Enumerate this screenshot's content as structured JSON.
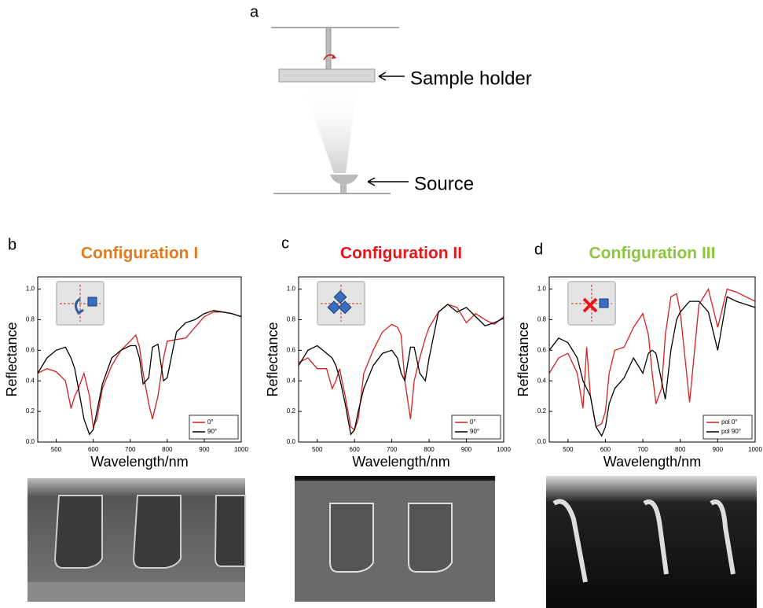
{
  "figure_a": {
    "panel": "a",
    "sample_holder": "Sample holder",
    "source": "Source"
  },
  "chart_data": [
    {
      "type": "line",
      "panel": "b",
      "title": "Configuration I",
      "title_color": "#e07b22",
      "xlabel": "Wavelength/nm",
      "ylabel": "Reflectance",
      "xlim": [
        450,
        1000
      ],
      "ylim": [
        0,
        1.08
      ],
      "xticks": [
        500,
        600,
        700,
        800,
        900,
        1000
      ],
      "yticks": [
        {
          "value": 0,
          "label": "0.0"
        },
        0.2,
        0.4,
        0.6,
        0.8,
        {
          "value": 1,
          "label": "1.0"
        }
      ],
      "legend": "lower right",
      "x": [
        450,
        475,
        500,
        525,
        540,
        550,
        560,
        575,
        590,
        600,
        610,
        625,
        650,
        675,
        700,
        715,
        725,
        735,
        750,
        760,
        775,
        790,
        800,
        825,
        850,
        875,
        900,
        925,
        950,
        975,
        1000
      ],
      "series": [
        {
          "name": "0°",
          "color": "#d42020",
          "values": [
            0.45,
            0.48,
            0.46,
            0.4,
            0.22,
            0.3,
            0.35,
            0.45,
            0.3,
            0.1,
            0.15,
            0.35,
            0.5,
            0.6,
            0.66,
            0.7,
            0.62,
            0.45,
            0.25,
            0.15,
            0.3,
            0.55,
            0.66,
            0.67,
            0.68,
            0.75,
            0.82,
            0.85,
            0.85,
            0.84,
            0.82
          ]
        },
        {
          "name": "90°",
          "color": "#000000",
          "values": [
            0.45,
            0.55,
            0.6,
            0.62,
            0.55,
            0.48,
            0.35,
            0.15,
            0.05,
            0.08,
            0.2,
            0.38,
            0.55,
            0.6,
            0.63,
            0.63,
            0.55,
            0.38,
            0.42,
            0.62,
            0.64,
            0.4,
            0.42,
            0.72,
            0.78,
            0.8,
            0.84,
            0.86,
            0.85,
            0.84,
            0.82
          ]
        }
      ]
    },
    {
      "type": "line",
      "panel": "c",
      "title": "Configuration II",
      "title_color": "#e8161b",
      "xlabel": "Wavelength/nm",
      "ylabel": "Reflectance",
      "xlim": [
        450,
        1000
      ],
      "ylim": [
        0,
        1.08
      ],
      "xticks": [
        500,
        600,
        700,
        800,
        900,
        1000
      ],
      "yticks": [
        {
          "value": 0,
          "label": "0.0"
        },
        0.2,
        0.4,
        0.6,
        0.8,
        {
          "value": 1,
          "label": "1.0"
        }
      ],
      "legend": "lower right",
      "x": [
        450,
        475,
        500,
        525,
        540,
        550,
        560,
        575,
        590,
        600,
        610,
        625,
        650,
        675,
        700,
        715,
        725,
        735,
        750,
        760,
        775,
        790,
        800,
        825,
        850,
        875,
        900,
        925,
        950,
        975,
        1000
      ],
      "series": [
        {
          "name": "0°",
          "color": "#d42020",
          "values": [
            0.52,
            0.55,
            0.48,
            0.48,
            0.35,
            0.4,
            0.48,
            0.3,
            0.1,
            0.08,
            0.15,
            0.45,
            0.6,
            0.72,
            0.77,
            0.75,
            0.7,
            0.4,
            0.15,
            0.4,
            0.55,
            0.68,
            0.75,
            0.85,
            0.9,
            0.88,
            0.78,
            0.84,
            0.8,
            0.77,
            0.82
          ]
        },
        {
          "name": "90°",
          "color": "#000000",
          "values": [
            0.5,
            0.6,
            0.63,
            0.58,
            0.55,
            0.5,
            0.42,
            0.25,
            0.05,
            0.08,
            0.2,
            0.35,
            0.5,
            0.58,
            0.6,
            0.55,
            0.45,
            0.4,
            0.62,
            0.62,
            0.45,
            0.4,
            0.55,
            0.85,
            0.9,
            0.85,
            0.88,
            0.82,
            0.76,
            0.78,
            0.81
          ]
        }
      ]
    },
    {
      "type": "line",
      "panel": "d",
      "title": "Configuration III",
      "title_color": "#8dc63f",
      "xlabel": "Wavelength/nm",
      "ylabel": "Reflectance",
      "xlim": [
        450,
        1000
      ],
      "ylim": [
        0,
        1.08
      ],
      "xticks": [
        500,
        600,
        700,
        800,
        900,
        1000
      ],
      "yticks": [
        {
          "value": 0,
          "label": "0.0"
        },
        0.2,
        0.4,
        0.6,
        0.8,
        {
          "value": 1,
          "label": "1.0"
        }
      ],
      "legend": "lower right",
      "x": [
        450,
        475,
        500,
        525,
        540,
        550,
        560,
        575,
        590,
        600,
        610,
        625,
        650,
        675,
        700,
        715,
        725,
        735,
        750,
        760,
        775,
        790,
        800,
        825,
        850,
        875,
        900,
        925,
        950,
        975,
        1000
      ],
      "series": [
        {
          "name": "pol 0°",
          "color": "#d42020",
          "values": [
            0.45,
            0.55,
            0.58,
            0.45,
            0.22,
            0.62,
            0.3,
            0.1,
            0.12,
            0.2,
            0.45,
            0.6,
            0.62,
            0.75,
            0.84,
            0.7,
            0.45,
            0.25,
            0.35,
            0.7,
            0.95,
            0.97,
            0.85,
            0.26,
            0.9,
            1.0,
            0.75,
            1.0,
            0.98,
            0.95,
            0.92
          ]
        },
        {
          "name": "pol 90°",
          "color": "#000000",
          "values": [
            0.6,
            0.68,
            0.65,
            0.55,
            0.4,
            0.35,
            0.3,
            0.1,
            0.04,
            0.1,
            0.25,
            0.35,
            0.42,
            0.55,
            0.45,
            0.58,
            0.6,
            0.58,
            0.4,
            0.28,
            0.6,
            0.8,
            0.85,
            0.92,
            0.92,
            0.85,
            0.6,
            0.95,
            0.92,
            0.9,
            0.88
          ]
        }
      ]
    }
  ]
}
